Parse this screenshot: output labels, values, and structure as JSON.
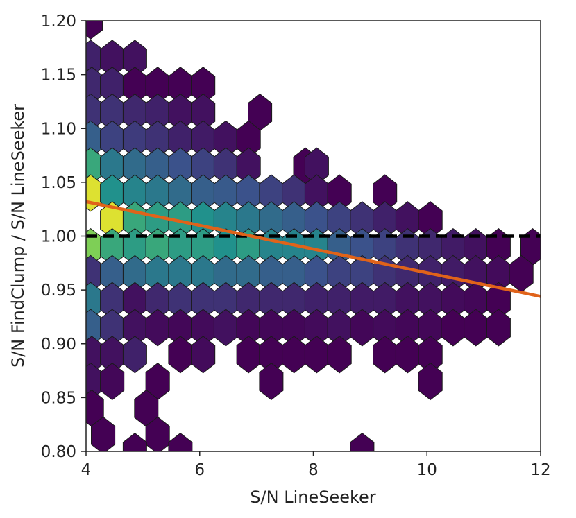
{
  "chart_data": {
    "type": "hexbin",
    "title": "",
    "xlabel": "S/N LineSeeker",
    "ylabel": "S/N FindClump / S/N LineSeeker",
    "xlim": [
      4,
      12
    ],
    "ylim": [
      0.8,
      1.2
    ],
    "xticks": [
      4,
      6,
      8,
      10,
      12
    ],
    "yticks": [
      0.8,
      0.85,
      0.9,
      0.95,
      1.0,
      1.05,
      1.1,
      1.15,
      1.2
    ],
    "xtick_labels": [
      "4",
      "6",
      "8",
      "10",
      "12"
    ],
    "ytick_labels": [
      "0.80",
      "0.85",
      "0.90",
      "0.95",
      "1.00",
      "1.05",
      "1.10",
      "1.15",
      "1.20"
    ],
    "grid": false,
    "colormap": "viridis",
    "hexbin": {
      "hex_half_width_x": 0.208,
      "row_step_y": 0.0255,
      "rows": [
        {
          "y": 1.2,
          "cells": [
            [
              4.08,
              0.0
            ]
          ]
        },
        {
          "y": 1.165,
          "cells": [
            [
              4.08,
              0.1
            ],
            [
              4.46,
              0.05
            ],
            [
              4.86,
              0.05
            ]
          ]
        },
        {
          "y": 1.14,
          "cells": [
            [
              4.1,
              0.12
            ],
            [
              4.46,
              0.1
            ],
            [
              4.86,
              0.0
            ],
            [
              5.26,
              0.0
            ],
            [
              5.66,
              0.0
            ],
            [
              6.06,
              0.0
            ]
          ]
        },
        {
          "y": 1.115,
          "cells": [
            [
              4.08,
              0.15
            ],
            [
              4.46,
              0.15
            ],
            [
              4.86,
              0.12
            ],
            [
              5.26,
              0.1
            ],
            [
              5.66,
              0.05
            ],
            [
              6.06,
              0.05
            ],
            [
              7.06,
              0.0
            ]
          ]
        },
        {
          "y": 1.09,
          "cells": [
            [
              4.08,
              0.3
            ],
            [
              4.46,
              0.2
            ],
            [
              4.86,
              0.18
            ],
            [
              5.26,
              0.15
            ],
            [
              5.66,
              0.1
            ],
            [
              6.06,
              0.08
            ],
            [
              6.46,
              0.05
            ],
            [
              6.86,
              0.0
            ]
          ]
        },
        {
          "y": 1.065,
          "cells": [
            [
              4.08,
              0.6
            ],
            [
              4.46,
              0.4
            ],
            [
              4.86,
              0.35
            ],
            [
              5.26,
              0.3
            ],
            [
              5.66,
              0.25
            ],
            [
              6.06,
              0.2
            ],
            [
              6.46,
              0.15
            ],
            [
              6.86,
              0.05
            ],
            [
              7.86,
              0.0
            ],
            [
              8.06,
              0.05
            ]
          ]
        },
        {
          "y": 1.04,
          "cells": [
            [
              4.08,
              0.95
            ],
            [
              4.46,
              0.5
            ],
            [
              4.86,
              0.45
            ],
            [
              5.26,
              0.4
            ],
            [
              5.66,
              0.35
            ],
            [
              6.06,
              0.3
            ],
            [
              6.46,
              0.28
            ],
            [
              6.86,
              0.25
            ],
            [
              7.26,
              0.2
            ],
            [
              7.66,
              0.15
            ],
            [
              8.06,
              0.05
            ],
            [
              8.46,
              0.0
            ],
            [
              9.26,
              0.0
            ]
          ]
        },
        {
          "y": 1.015,
          "cells": [
            [
              4.46,
              0.95
            ],
            [
              4.86,
              0.6
            ],
            [
              5.26,
              0.55
            ],
            [
              5.66,
              0.55
            ],
            [
              6.06,
              0.5
            ],
            [
              6.46,
              0.45
            ],
            [
              6.86,
              0.4
            ],
            [
              7.26,
              0.35
            ],
            [
              7.66,
              0.3
            ],
            [
              8.06,
              0.25
            ],
            [
              8.46,
              0.2
            ],
            [
              8.86,
              0.15
            ],
            [
              9.26,
              0.1
            ],
            [
              9.66,
              0.05
            ],
            [
              10.06,
              0.0
            ]
          ]
        },
        {
          "y": 0.99,
          "cells": [
            [
              4.08,
              0.8
            ],
            [
              4.46,
              0.6
            ],
            [
              4.86,
              0.55
            ],
            [
              5.26,
              0.6
            ],
            [
              5.66,
              0.55
            ],
            [
              6.06,
              0.55
            ],
            [
              6.46,
              0.5
            ],
            [
              6.86,
              0.55
            ],
            [
              7.26,
              0.45
            ],
            [
              7.66,
              0.45
            ],
            [
              8.06,
              0.45
            ],
            [
              8.46,
              0.3
            ],
            [
              8.86,
              0.25
            ],
            [
              9.26,
              0.2
            ],
            [
              9.66,
              0.15
            ],
            [
              10.06,
              0.12
            ],
            [
              10.46,
              0.08
            ],
            [
              10.86,
              0.05
            ],
            [
              11.26,
              0.0
            ],
            [
              11.86,
              0.0
            ]
          ]
        },
        {
          "y": 0.965,
          "cells": [
            [
              4.08,
              0.15
            ],
            [
              4.46,
              0.3
            ],
            [
              4.86,
              0.35
            ],
            [
              5.26,
              0.4
            ],
            [
              5.66,
              0.4
            ],
            [
              6.06,
              0.4
            ],
            [
              6.46,
              0.35
            ],
            [
              6.86,
              0.35
            ],
            [
              7.26,
              0.3
            ],
            [
              7.66,
              0.3
            ],
            [
              8.06,
              0.25
            ],
            [
              8.46,
              0.2
            ],
            [
              8.86,
              0.2
            ],
            [
              9.26,
              0.15
            ],
            [
              9.66,
              0.12
            ],
            [
              10.06,
              0.1
            ],
            [
              10.46,
              0.08
            ],
            [
              10.86,
              0.05
            ],
            [
              11.26,
              0.03
            ],
            [
              11.66,
              0.0
            ]
          ]
        },
        {
          "y": 0.94,
          "cells": [
            [
              4.08,
              0.4
            ],
            [
              4.46,
              0.15
            ],
            [
              4.86,
              0.05
            ],
            [
              5.26,
              0.12
            ],
            [
              5.66,
              0.15
            ],
            [
              6.06,
              0.15
            ],
            [
              6.46,
              0.15
            ],
            [
              6.86,
              0.12
            ],
            [
              7.26,
              0.12
            ],
            [
              7.66,
              0.12
            ],
            [
              8.06,
              0.1
            ],
            [
              8.46,
              0.1
            ],
            [
              8.86,
              0.08
            ],
            [
              9.26,
              0.08
            ],
            [
              9.66,
              0.05
            ],
            [
              10.06,
              0.05
            ],
            [
              10.46,
              0.03
            ],
            [
              10.86,
              0.02
            ],
            [
              11.26,
              0.0
            ]
          ]
        },
        {
          "y": 0.915,
          "cells": [
            [
              4.08,
              0.3
            ],
            [
              4.46,
              0.15
            ],
            [
              4.86,
              0.05
            ],
            [
              5.26,
              0.03
            ],
            [
              5.66,
              0.02
            ],
            [
              6.06,
              0.03
            ],
            [
              6.46,
              0.05
            ],
            [
              6.86,
              0.02
            ],
            [
              7.26,
              0.02
            ],
            [
              7.66,
              0.02
            ],
            [
              8.06,
              0.03
            ],
            [
              8.46,
              0.05
            ],
            [
              8.86,
              0.02
            ],
            [
              9.26,
              0.03
            ],
            [
              9.66,
              0.02
            ],
            [
              10.06,
              0.02
            ],
            [
              10.46,
              0.0
            ],
            [
              10.86,
              0.0
            ],
            [
              11.26,
              0.0
            ]
          ]
        },
        {
          "y": 0.89,
          "cells": [
            [
              4.1,
              0.05
            ],
            [
              4.46,
              0.05
            ],
            [
              4.86,
              0.1
            ],
            [
              5.66,
              0.0
            ],
            [
              6.06,
              0.03
            ],
            [
              6.86,
              0.0
            ],
            [
              7.26,
              0.0
            ],
            [
              7.66,
              0.0
            ],
            [
              8.06,
              0.0
            ],
            [
              8.46,
              0.0
            ],
            [
              9.26,
              0.0
            ],
            [
              9.66,
              0.0
            ],
            [
              10.06,
              0.0
            ]
          ]
        },
        {
          "y": 0.865,
          "cells": [
            [
              4.08,
              0.05
            ],
            [
              4.46,
              0.02
            ],
            [
              5.26,
              0.0
            ],
            [
              7.26,
              0.0
            ],
            [
              10.06,
              0.0
            ]
          ]
        },
        {
          "y": 0.84,
          "cells": [
            [
              4.1,
              0.0
            ],
            [
              5.06,
              0.0
            ]
          ]
        },
        {
          "y": 0.815,
          "cells": [
            [
              4.3,
              0.0
            ],
            [
              5.26,
              0.0
            ]
          ]
        },
        {
          "y": 0.8,
          "cells": [
            [
              4.86,
              0.0
            ],
            [
              5.66,
              0.0
            ],
            [
              8.86,
              0.0
            ]
          ]
        }
      ]
    },
    "lines": [
      {
        "style": "dashed",
        "color": "#000000",
        "x": [
          4,
          12
        ],
        "y": [
          1.0,
          1.0
        ]
      },
      {
        "style": "solid",
        "color": "#e0631a",
        "x": [
          4,
          12
        ],
        "y": [
          1.032,
          0.944
        ]
      }
    ]
  }
}
